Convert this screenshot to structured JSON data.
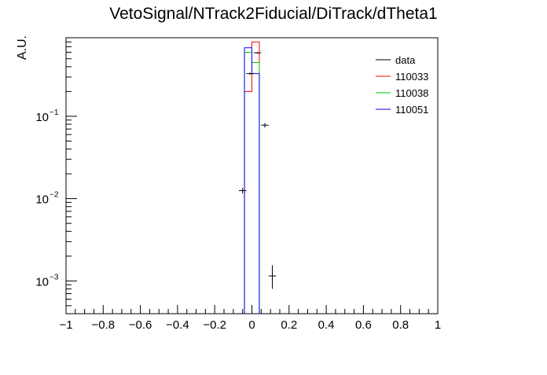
{
  "chart_data": {
    "type": "histogram",
    "title": "VetoSignal/NTrack2Fiducial/DiTrack/dTheta1",
    "xlabel": "",
    "ylabel": "A.U.",
    "xlim": [
      -1,
      1
    ],
    "ylim": [
      0.0004,
      0.9
    ],
    "yscale": "log",
    "grid": false,
    "legend_position": "top-right",
    "x_ticks": [
      {
        "value": -1,
        "label": "−1"
      },
      {
        "value": -0.8,
        "label": "−0.8"
      },
      {
        "value": -0.6,
        "label": "−0.6"
      },
      {
        "value": -0.4,
        "label": "−0.4"
      },
      {
        "value": -0.2,
        "label": "−0.2"
      },
      {
        "value": 0,
        "label": "0"
      },
      {
        "value": 0.2,
        "label": "0.2"
      },
      {
        "value": 0.4,
        "label": "0.4"
      },
      {
        "value": 0.6,
        "label": "0.6"
      },
      {
        "value": 0.8,
        "label": "0.8"
      },
      {
        "value": 1,
        "label": "1"
      }
    ],
    "y_ticks": [
      {
        "value": 0.001,
        "base": "10",
        "exp": "−3"
      },
      {
        "value": 0.01,
        "base": "10",
        "exp": "−2"
      },
      {
        "value": 0.1,
        "base": "10",
        "exp": "−1"
      }
    ],
    "series": [
      {
        "name": "data",
        "color": "#000000",
        "style": "points",
        "points": [
          {
            "x": -0.05,
            "y": 0.0125,
            "ylow": 0.0115,
            "yhigh": 0.0135
          },
          {
            "x": -0.01,
            "y": 0.33,
            "ylow": 0.32,
            "yhigh": 0.34
          },
          {
            "x": 0.03,
            "y": 0.59,
            "ylow": 0.575,
            "yhigh": 0.605
          },
          {
            "x": 0.07,
            "y": 0.078,
            "ylow": 0.073,
            "yhigh": 0.083
          },
          {
            "x": 0.11,
            "y": 0.00115,
            "ylow": 0.0008,
            "yhigh": 0.00155
          }
        ],
        "bin_half_width": 0.02
      },
      {
        "name": "110033",
        "color": "#ff0000",
        "style": "step",
        "bins": [
          {
            "x0": -0.04,
            "x1": 0,
            "y": 0.2
          },
          {
            "x0": 0,
            "x1": 0.04,
            "y": 0.8
          }
        ]
      },
      {
        "name": "110038",
        "color": "#00cc00",
        "style": "step",
        "bins": [
          {
            "x0": -0.04,
            "x1": 0,
            "y": 0.6
          },
          {
            "x0": 0,
            "x1": 0.04,
            "y": 0.45
          }
        ]
      },
      {
        "name": "110051",
        "color": "#0000ff",
        "style": "step",
        "bins": [
          {
            "x0": -0.04,
            "x1": 0,
            "y": 0.68
          },
          {
            "x0": 0,
            "x1": 0.04,
            "y": 0.33
          }
        ]
      }
    ]
  }
}
